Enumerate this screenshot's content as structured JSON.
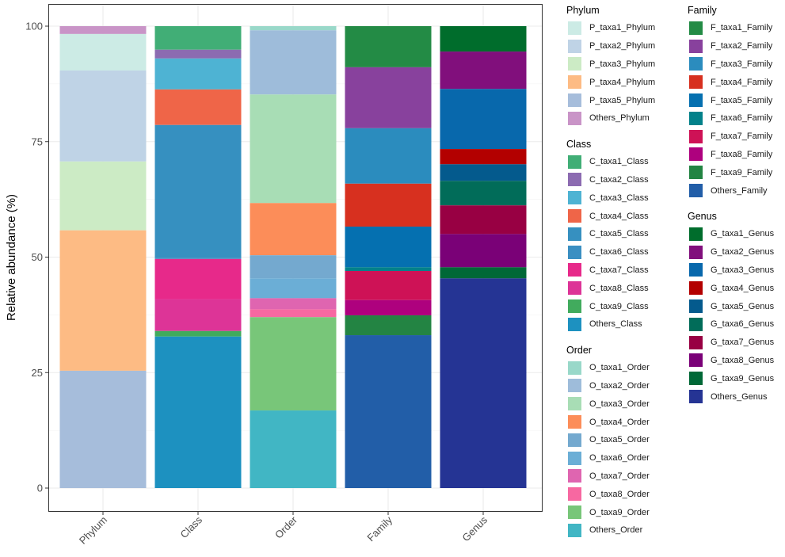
{
  "chart_data": {
    "type": "bar",
    "stacked": true,
    "title": "",
    "xlabel": "",
    "ylabel": "Relative abundance (%)",
    "ylim": [
      0,
      100
    ],
    "yticks": [
      0,
      25,
      50,
      75,
      100
    ],
    "grid": true,
    "legend_position": "right",
    "categories": [
      "Phylum",
      "Class",
      "Order",
      "Family",
      "Genus"
    ],
    "bars": [
      {
        "category": "Phylum",
        "segments_top_to_bottom": [
          {
            "name": "Others_Phylum",
            "value": 1.7,
            "color": "#c994c7"
          },
          {
            "name": "P_taxa1_Phylum",
            "value": 7.9,
            "color": "#ccebe5"
          },
          {
            "name": "P_taxa2_Phylum",
            "value": 19.7,
            "color": "#bfd3e6"
          },
          {
            "name": "P_taxa3_Phylum",
            "value": 14.9,
            "color": "#ccebc5"
          },
          {
            "name": "P_taxa4_Phylum",
            "value": 30.4,
            "color": "#fdbb84"
          },
          {
            "name": "P_taxa5_Phylum",
            "value": 25.4,
            "color": "#a6bddb"
          }
        ]
      },
      {
        "category": "Class",
        "segments_top_to_bottom": [
          {
            "name": "C_taxa1_Class",
            "value": 5.1,
            "color": "#41ae76"
          },
          {
            "name": "C_taxa2_Class",
            "value": 1.9,
            "color": "#8c6bb1"
          },
          {
            "name": "C_taxa3_Class",
            "value": 6.7,
            "color": "#4eb3d3"
          },
          {
            "name": "C_taxa4_Class",
            "value": 7.7,
            "color": "#ef6548"
          },
          {
            "name": "C_taxa5_Class",
            "value": 28.7,
            "color": "#3690c0"
          },
          {
            "name": "C_taxa6_Class",
            "value": 0.3,
            "color": "#3a8fc2"
          },
          {
            "name": "C_taxa7_Class",
            "value": 8.7,
            "color": "#e7298a"
          },
          {
            "name": "C_taxa8_Class",
            "value": 6.9,
            "color": "#dd3497"
          },
          {
            "name": "C_taxa9_Class",
            "value": 1.2,
            "color": "#41ab5d"
          },
          {
            "name": "Others_Class",
            "value": 32.8,
            "color": "#1d91c0"
          }
        ]
      },
      {
        "category": "Order",
        "segments_top_to_bottom": [
          {
            "name": "O_taxa1_Order",
            "value": 0.9,
            "color": "#99d8c9"
          },
          {
            "name": "O_taxa2_Order",
            "value": 13.9,
            "color": "#9ebcda"
          },
          {
            "name": "O_taxa3_Order",
            "value": 23.5,
            "color": "#a8ddb5"
          },
          {
            "name": "O_taxa4_Order",
            "value": 11.3,
            "color": "#fc8d59"
          },
          {
            "name": "O_taxa5_Order",
            "value": 5.0,
            "color": "#74a9cf"
          },
          {
            "name": "O_taxa6_Order",
            "value": 4.3,
            "color": "#6baed6"
          },
          {
            "name": "O_taxa7_Order",
            "value": 2.4,
            "color": "#df65b0"
          },
          {
            "name": "O_taxa8_Order",
            "value": 1.7,
            "color": "#f768a1"
          },
          {
            "name": "O_taxa9_Order",
            "value": 20.2,
            "color": "#78c679"
          },
          {
            "name": "Others_Order",
            "value": 16.8,
            "color": "#41b6c4"
          }
        ]
      },
      {
        "category": "Family",
        "segments_top_to_bottom": [
          {
            "name": "F_taxa1_Family",
            "value": 8.9,
            "color": "#238b45"
          },
          {
            "name": "F_taxa2_Family",
            "value": 13.2,
            "color": "#88419d"
          },
          {
            "name": "F_taxa3_Family",
            "value": 12.0,
            "color": "#2b8cbe"
          },
          {
            "name": "F_taxa4_Family",
            "value": 9.3,
            "color": "#d7301f"
          },
          {
            "name": "F_taxa5_Family",
            "value": 8.8,
            "color": "#0570b0"
          },
          {
            "name": "F_taxa6_Family",
            "value": 0.8,
            "color": "#02818a"
          },
          {
            "name": "F_taxa7_Family",
            "value": 6.3,
            "color": "#ce1256"
          },
          {
            "name": "F_taxa8_Family",
            "value": 3.3,
            "color": "#ae017e"
          },
          {
            "name": "F_taxa9_Family",
            "value": 4.3,
            "color": "#238443"
          },
          {
            "name": "Others_Family",
            "value": 33.1,
            "color": "#225ea8"
          }
        ]
      },
      {
        "category": "Genus",
        "segments_top_to_bottom": [
          {
            "name": "G_taxa1_Genus",
            "value": 5.5,
            "color": "#006d2c"
          },
          {
            "name": "G_taxa2_Genus",
            "value": 8.1,
            "color": "#810f7c"
          },
          {
            "name": "G_taxa3_Genus",
            "value": 13.0,
            "color": "#0868ac"
          },
          {
            "name": "G_taxa4_Genus",
            "value": 3.3,
            "color": "#b30000"
          },
          {
            "name": "G_taxa5_Genus",
            "value": 3.6,
            "color": "#045a8d"
          },
          {
            "name": "G_taxa6_Genus",
            "value": 5.3,
            "color": "#016c59"
          },
          {
            "name": "G_taxa7_Genus",
            "value": 6.2,
            "color": "#980043"
          },
          {
            "name": "G_taxa8_Genus",
            "value": 7.2,
            "color": "#7a0177"
          },
          {
            "name": "G_taxa9_Genus",
            "value": 2.4,
            "color": "#006837"
          },
          {
            "name": "Others_Genus",
            "value": 45.4,
            "color": "#253494"
          }
        ]
      }
    ],
    "legends": [
      {
        "title": "Phylum",
        "items": [
          {
            "label": "P_taxa1_Phylum",
            "color": "#ccebe5"
          },
          {
            "label": "P_taxa2_Phylum",
            "color": "#bfd3e6"
          },
          {
            "label": "P_taxa3_Phylum",
            "color": "#ccebc5"
          },
          {
            "label": "P_taxa4_Phylum",
            "color": "#fdbb84"
          },
          {
            "label": "P_taxa5_Phylum",
            "color": "#a6bddb"
          },
          {
            "label": "Others_Phylum",
            "color": "#c994c7"
          }
        ]
      },
      {
        "title": "Class",
        "items": [
          {
            "label": "C_taxa1_Class",
            "color": "#41ae76"
          },
          {
            "label": "C_taxa2_Class",
            "color": "#8c6bb1"
          },
          {
            "label": "C_taxa3_Class",
            "color": "#4eb3d3"
          },
          {
            "label": "C_taxa4_Class",
            "color": "#ef6548"
          },
          {
            "label": "C_taxa5_Class",
            "color": "#3690c0"
          },
          {
            "label": "C_taxa6_Class",
            "color": "#3a8fc2"
          },
          {
            "label": "C_taxa7_Class",
            "color": "#e7298a"
          },
          {
            "label": "C_taxa8_Class",
            "color": "#dd3497"
          },
          {
            "label": "C_taxa9_Class",
            "color": "#41ab5d"
          },
          {
            "label": "Others_Class",
            "color": "#1d91c0"
          }
        ]
      },
      {
        "title": "Order",
        "items": [
          {
            "label": "O_taxa1_Order",
            "color": "#99d8c9"
          },
          {
            "label": "O_taxa2_Order",
            "color": "#9ebcda"
          },
          {
            "label": "O_taxa3_Order",
            "color": "#a8ddb5"
          },
          {
            "label": "O_taxa4_Order",
            "color": "#fc8d59"
          },
          {
            "label": "O_taxa5_Order",
            "color": "#74a9cf"
          },
          {
            "label": "O_taxa6_Order",
            "color": "#6baed6"
          },
          {
            "label": "O_taxa7_Order",
            "color": "#df65b0"
          },
          {
            "label": "O_taxa8_Order",
            "color": "#f768a1"
          },
          {
            "label": "O_taxa9_Order",
            "color": "#78c679"
          },
          {
            "label": "Others_Order",
            "color": "#41b6c4"
          }
        ]
      },
      {
        "title": "Family",
        "items": [
          {
            "label": "F_taxa1_Family",
            "color": "#238b45"
          },
          {
            "label": "F_taxa2_Family",
            "color": "#88419d"
          },
          {
            "label": "F_taxa3_Family",
            "color": "#2b8cbe"
          },
          {
            "label": "F_taxa4_Family",
            "color": "#d7301f"
          },
          {
            "label": "F_taxa5_Family",
            "color": "#0570b0"
          },
          {
            "label": "F_taxa6_Family",
            "color": "#02818a"
          },
          {
            "label": "F_taxa7_Family",
            "color": "#ce1256"
          },
          {
            "label": "F_taxa8_Family",
            "color": "#ae017e"
          },
          {
            "label": "F_taxa9_Family",
            "color": "#238443"
          },
          {
            "label": "Others_Family",
            "color": "#225ea8"
          }
        ]
      },
      {
        "title": "Genus",
        "items": [
          {
            "label": "G_taxa1_Genus",
            "color": "#006d2c"
          },
          {
            "label": "G_taxa2_Genus",
            "color": "#810f7c"
          },
          {
            "label": "G_taxa3_Genus",
            "color": "#0868ac"
          },
          {
            "label": "G_taxa4_Genus",
            "color": "#b30000"
          },
          {
            "label": "G_taxa5_Genus",
            "color": "#045a8d"
          },
          {
            "label": "G_taxa6_Genus",
            "color": "#016c59"
          },
          {
            "label": "G_taxa7_Genus",
            "color": "#980043"
          },
          {
            "label": "G_taxa8_Genus",
            "color": "#7a0177"
          },
          {
            "label": "G_taxa9_Genus",
            "color": "#006837"
          },
          {
            "label": "Others_Genus",
            "color": "#253494"
          }
        ]
      }
    ]
  }
}
